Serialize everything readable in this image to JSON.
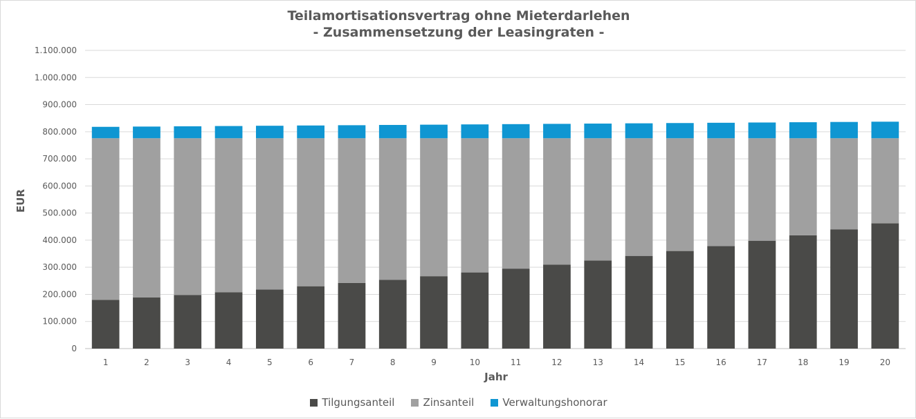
{
  "chart_data": {
    "type": "bar",
    "stacked": true,
    "title": "Teilamortisationsvertrag ohne Mieterdarlehen",
    "subtitle": "- Zusammensetzung der Leasingraten -",
    "xlabel": "Jahr",
    "ylabel": "EUR",
    "ylim": [
      0,
      1100000
    ],
    "yticks": [
      "0",
      "100.000",
      "200.000",
      "300.000",
      "400.000",
      "500.000",
      "600.000",
      "700.000",
      "800.000",
      "900.000",
      "1.000.000",
      "1.100.000"
    ],
    "grid": true,
    "legend_position": "bottom",
    "categories": [
      "1",
      "2",
      "3",
      "4",
      "5",
      "6",
      "7",
      "8",
      "9",
      "10",
      "11",
      "12",
      "13",
      "14",
      "15",
      "16",
      "17",
      "18",
      "19",
      "20"
    ],
    "series": [
      {
        "name": "Tilgungsanteil",
        "color": "#4a4a48",
        "values": [
          180000,
          189000,
          198000,
          208000,
          218000,
          230000,
          242000,
          254000,
          267000,
          281000,
          295000,
          310000,
          325000,
          342000,
          360000,
          378000,
          398000,
          418000,
          440000,
          462000
        ]
      },
      {
        "name": "Zinsanteil",
        "color": "#a0a0a0",
        "values": [
          596000,
          587000,
          578000,
          568000,
          558000,
          546000,
          534000,
          522000,
          509000,
          495000,
          481000,
          466000,
          451000,
          434000,
          416000,
          398000,
          378000,
          358000,
          336000,
          314000
        ]
      },
      {
        "name": "Verwaltungshonorar",
        "color": "#0f96d2",
        "values": [
          42000,
          43000,
          44000,
          45000,
          46000,
          47000,
          48000,
          49000,
          50000,
          51000,
          52000,
          53000,
          54000,
          55000,
          56000,
          57000,
          58000,
          59000,
          60000,
          61000
        ]
      }
    ]
  }
}
